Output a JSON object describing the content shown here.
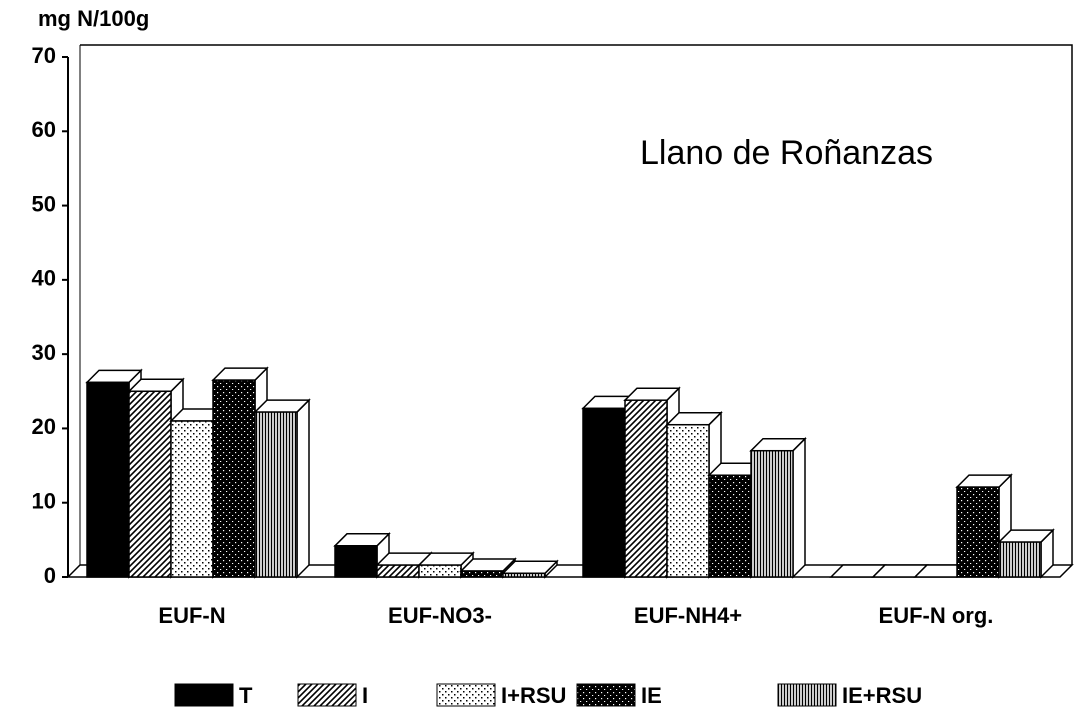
{
  "chart_data": {
    "type": "bar3d",
    "y_label": "mg N/100g",
    "annotation": "Llano de Roñanzas",
    "categories": [
      "EUF-N",
      "EUF-NO3-",
      "EUF-NH4+",
      "EUF-N org."
    ],
    "series": [
      {
        "name": "T",
        "color": "#000000",
        "pattern": "solid",
        "values": [
          26.2,
          4.2,
          22.7,
          0
        ]
      },
      {
        "name": "I",
        "color": "#000000",
        "pattern": "diagonal",
        "values": [
          25,
          1.6,
          23.8,
          0
        ]
      },
      {
        "name": "I+RSU",
        "color": "#000000",
        "pattern": "light-dots",
        "values": [
          21,
          1.6,
          20.5,
          0
        ]
      },
      {
        "name": "IE",
        "color": "#000000",
        "pattern": "dark-dots",
        "values": [
          26.5,
          0.8,
          13.7,
          12.1
        ]
      },
      {
        "name": "IE+RSU",
        "color": "#000000",
        "pattern": "vertical",
        "values": [
          22.2,
          0.5,
          17,
          4.7
        ]
      }
    ],
    "ylim": [
      0,
      70
    ],
    "yticks": [
      0,
      10,
      20,
      30,
      40,
      50,
      60,
      70
    ]
  }
}
